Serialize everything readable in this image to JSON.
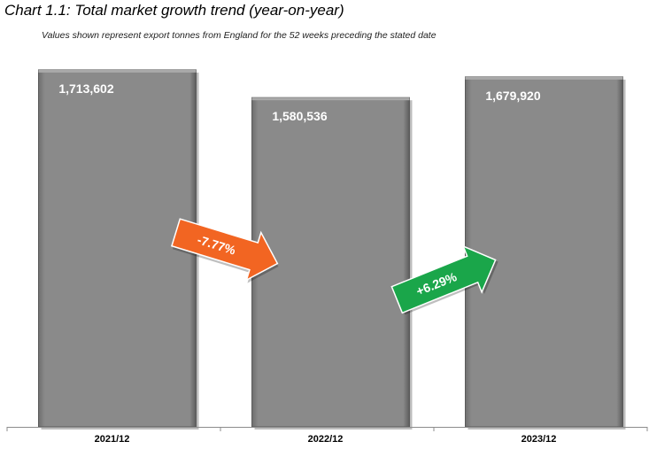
{
  "chart_data": {
    "type": "bar",
    "title": "Chart 1.1: Total market growth trend (year-on-year)",
    "subtitle": "Values shown represent export tonnes from England for the 52 weeks preceding the stated date",
    "categories": [
      "2021/12",
      "2022/12",
      "2023/12"
    ],
    "values": [
      1713602,
      1580536,
      1679920
    ],
    "value_labels": [
      "1,713,602",
      "1,580,536",
      "1,679,920"
    ],
    "ylim": [
      0,
      1760000
    ],
    "bar_color": "#878787",
    "grid": false,
    "changes": [
      {
        "label": "-7.77%",
        "color": "#f26522",
        "direction": "down"
      },
      {
        "label": "+6.29%",
        "color": "#1aa64a",
        "direction": "up"
      }
    ]
  }
}
